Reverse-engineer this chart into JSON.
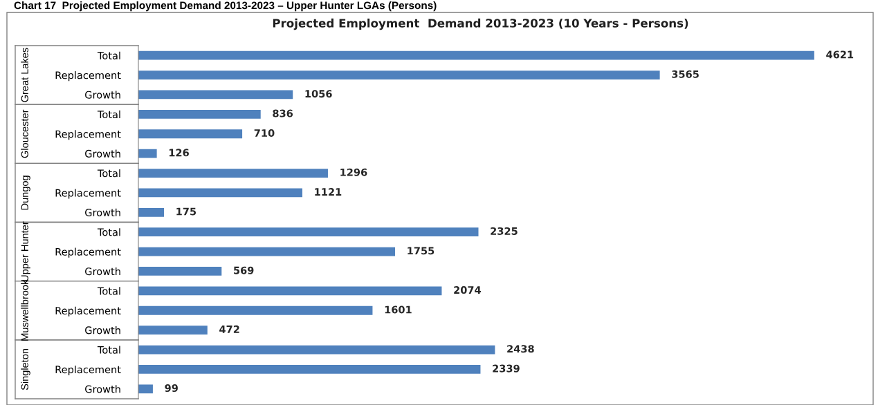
{
  "chart_data": {
    "type": "bar",
    "orientation": "horizontal",
    "title": "Projected Employment  Demand 2013-2023 (10 Years - Persons)",
    "categories": [
      "Total",
      "Replacement",
      "Growth",
      "Total",
      "Replacement",
      "Growth",
      "Total",
      "Replacement",
      "Growth",
      "Total",
      "Replacement",
      "Growth",
      "Total",
      "Replacement",
      "Growth",
      "Total",
      "Replacement",
      "Growth"
    ],
    "values": [
      4621,
      3565,
      1056,
      836,
      710,
      126,
      1296,
      1121,
      175,
      2325,
      1755,
      569,
      2074,
      1601,
      472,
      2438,
      2339,
      99
    ],
    "color": "#4f81bd",
    "data_labels": true,
    "grid": false,
    "legend": false,
    "tick_labels": "y",
    "annotations": [
      "Chart 17  Projected Employment Demand 2013-2023 – Upper Hunter LGAs (Persons)",
      "Great Lakes",
      "Gloucester",
      "Dungog",
      "Upper Hunter",
      "Muswellbrook",
      "Singleton"
    ]
  }
}
